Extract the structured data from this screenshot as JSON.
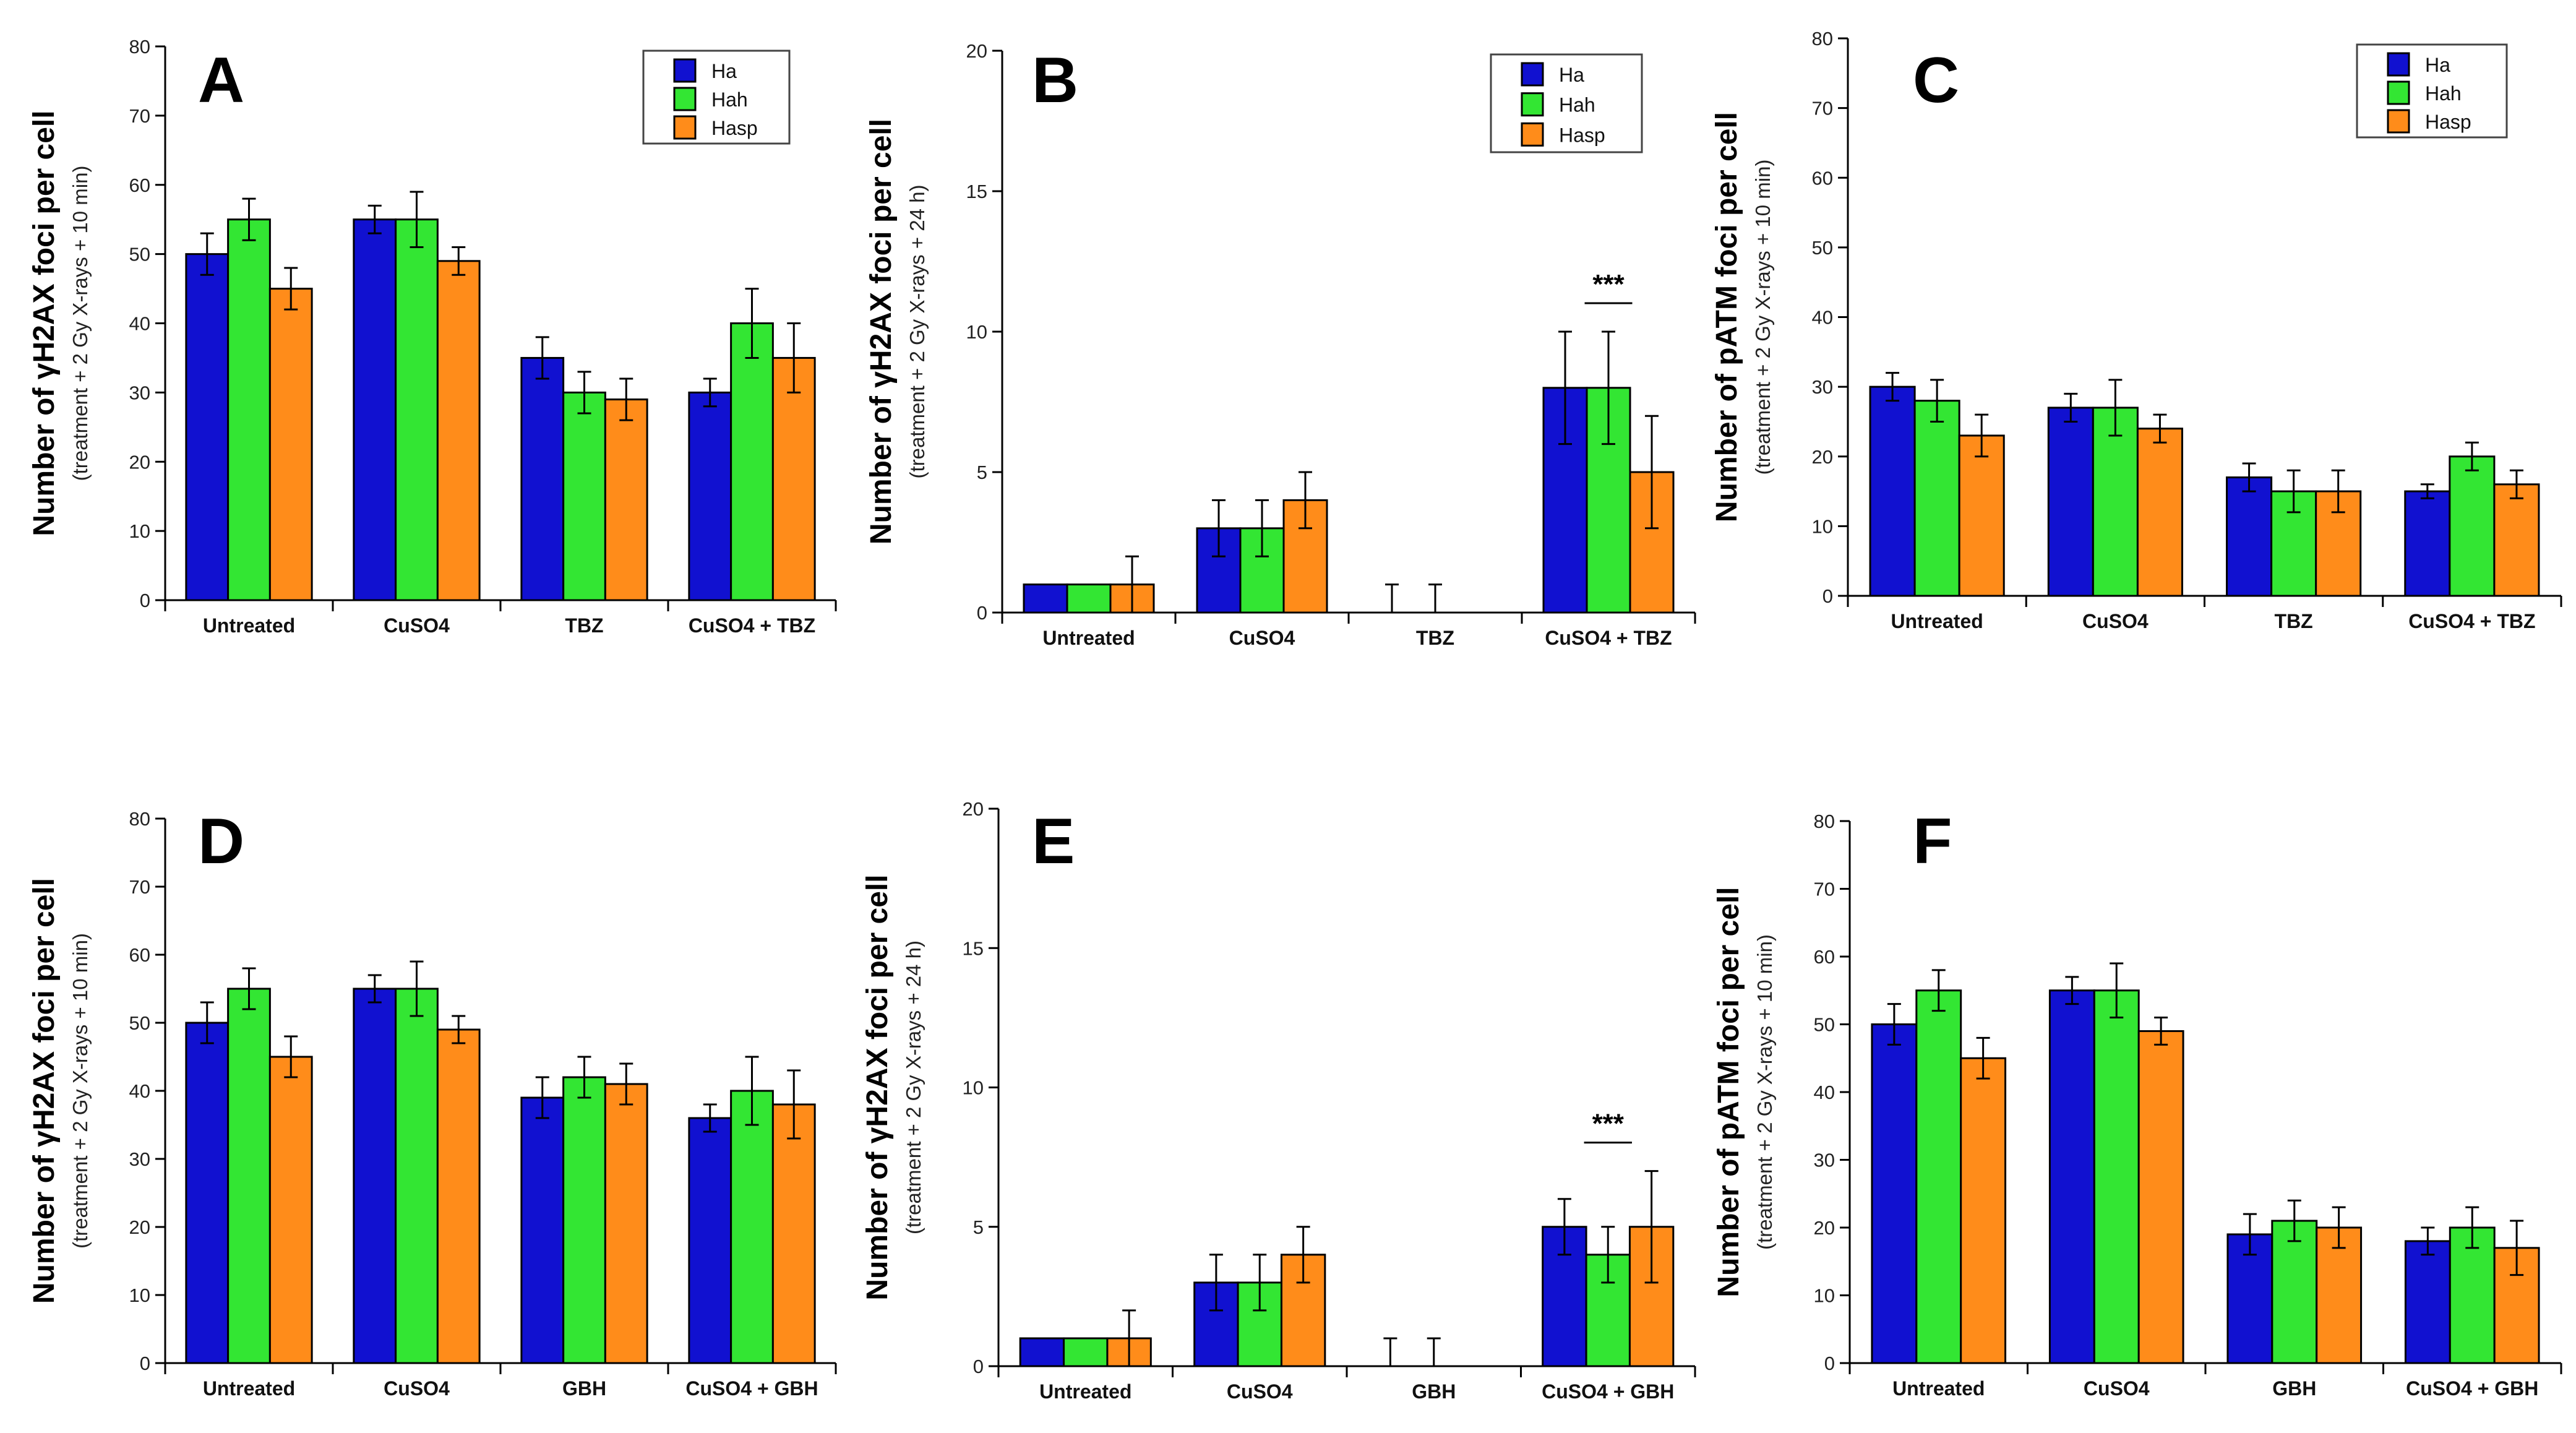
{
  "figure": {
    "colors": {
      "Ha": "#1111d0",
      "Hah": "#33e633",
      "Hasp": "#ff8c1a",
      "axis": "#000000"
    },
    "legend_labels": [
      "Ha",
      "Hah",
      "Hasp"
    ]
  },
  "chart_data": [
    {
      "panel": "A",
      "type": "bar",
      "ylabel": "Number of γH2AX foci per cell",
      "ysublabel": "(treatment + 2 Gy X-rays + 10 min)",
      "ylim": [
        0,
        80
      ],
      "yticks": [
        0,
        10,
        20,
        30,
        40,
        50,
        60,
        70,
        80
      ],
      "categories": [
        "Untreated",
        "CuSO4",
        "TBZ",
        "CuSO4 + TBZ"
      ],
      "series": [
        {
          "name": "Ha",
          "values": [
            50,
            55,
            35,
            30
          ],
          "errors": [
            3,
            2,
            3,
            2
          ]
        },
        {
          "name": "Hah",
          "values": [
            55,
            55,
            30,
            40
          ],
          "errors": [
            3,
            4,
            3,
            5
          ]
        },
        {
          "name": "Hasp",
          "values": [
            45,
            49,
            29,
            35
          ],
          "errors": [
            3,
            2,
            3,
            5
          ]
        }
      ],
      "legend": "top-right",
      "annotation": null
    },
    {
      "panel": "B",
      "type": "bar",
      "ylabel": "Number of γH2AX foci per cell",
      "ysublabel": "(treatment + 2 Gy X-rays + 24 h)",
      "ylim": [
        0,
        20
      ],
      "yticks": [
        0,
        5,
        10,
        15,
        20
      ],
      "categories": [
        "Untreated",
        "CuSO4",
        "TBZ",
        "CuSO4 + TBZ"
      ],
      "series": [
        {
          "name": "Ha",
          "values": [
            1,
            3,
            0,
            8
          ],
          "errors": [
            0,
            1,
            1,
            2
          ]
        },
        {
          "name": "Hah",
          "values": [
            1,
            3,
            0,
            8
          ],
          "errors": [
            0,
            1,
            1,
            2
          ]
        },
        {
          "name": "Hasp",
          "values": [
            1,
            4,
            0,
            5
          ],
          "errors": [
            1,
            1,
            0,
            2
          ]
        }
      ],
      "legend": "top-right",
      "annotation": "***"
    },
    {
      "panel": "C",
      "type": "bar",
      "ylabel": "Number of pATM foci per cell",
      "ysublabel": "(treatment + 2 Gy X-rays + 10 min)",
      "ylim": [
        0,
        80
      ],
      "yticks": [
        0,
        10,
        20,
        30,
        40,
        50,
        60,
        70,
        80
      ],
      "categories": [
        "Untreated",
        "CuSO4",
        "TBZ",
        "CuSO4 + TBZ"
      ],
      "series": [
        {
          "name": "Ha",
          "values": [
            30,
            27,
            17,
            15
          ],
          "errors": [
            2,
            2,
            2,
            1
          ]
        },
        {
          "name": "Hah",
          "values": [
            28,
            27,
            15,
            20
          ],
          "errors": [
            3,
            4,
            3,
            2
          ]
        },
        {
          "name": "Hasp",
          "values": [
            23,
            24,
            15,
            16
          ],
          "errors": [
            3,
            2,
            3,
            2
          ]
        }
      ],
      "legend": "top-right",
      "annotation": null
    },
    {
      "panel": "D",
      "type": "bar",
      "ylabel": "Number of γH2AX foci per cell",
      "ysublabel": "(treatment + 2 Gy X-rays + 10 min)",
      "ylim": [
        0,
        80
      ],
      "yticks": [
        0,
        10,
        20,
        30,
        40,
        50,
        60,
        70,
        80
      ],
      "categories": [
        "Untreated",
        "CuSO4",
        "GBH",
        "CuSO4 + GBH"
      ],
      "series": [
        {
          "name": "Ha",
          "values": [
            50,
            55,
            39,
            36
          ],
          "errors": [
            3,
            2,
            3,
            2
          ]
        },
        {
          "name": "Hah",
          "values": [
            55,
            55,
            42,
            40
          ],
          "errors": [
            3,
            4,
            3,
            5
          ]
        },
        {
          "name": "Hasp",
          "values": [
            45,
            49,
            41,
            38
          ],
          "errors": [
            3,
            2,
            3,
            5
          ]
        }
      ],
      "legend": null,
      "annotation": null
    },
    {
      "panel": "E",
      "type": "bar",
      "ylabel": "Number of γH2AX foci per cell",
      "ysublabel": "(treatment + 2 Gy X-rays + 24 h)",
      "ylim": [
        0,
        20
      ],
      "yticks": [
        0,
        5,
        10,
        15,
        20
      ],
      "categories": [
        "Untreated",
        "CuSO4",
        "GBH",
        "CuSO4 + GBH"
      ],
      "series": [
        {
          "name": "Ha",
          "values": [
            1,
            3,
            0,
            5
          ],
          "errors": [
            0,
            1,
            1,
            1
          ]
        },
        {
          "name": "Hah",
          "values": [
            1,
            3,
            0,
            4
          ],
          "errors": [
            0,
            1,
            1,
            1
          ]
        },
        {
          "name": "Hasp",
          "values": [
            1,
            4,
            0,
            5
          ],
          "errors": [
            1,
            1,
            0,
            2
          ]
        }
      ],
      "legend": null,
      "annotation": "***"
    },
    {
      "panel": "F",
      "type": "bar",
      "ylabel": "Number of pATM foci per cell",
      "ysublabel": "(treatment + 2 Gy X-rays + 10 min)",
      "ylim": [
        0,
        80
      ],
      "yticks": [
        0,
        10,
        20,
        30,
        40,
        50,
        60,
        70,
        80
      ],
      "categories": [
        "Untreated",
        "CuSO4",
        "GBH",
        "CuSO4 + GBH"
      ],
      "series": [
        {
          "name": "Ha",
          "values": [
            50,
            55,
            19,
            18
          ],
          "errors": [
            3,
            2,
            3,
            2
          ]
        },
        {
          "name": "Hah",
          "values": [
            55,
            55,
            21,
            20
          ],
          "errors": [
            3,
            4,
            3,
            3
          ]
        },
        {
          "name": "Hasp",
          "values": [
            45,
            49,
            20,
            17
          ],
          "errors": [
            3,
            2,
            3,
            4
          ]
        }
      ],
      "legend": null,
      "annotation": null
    }
  ]
}
